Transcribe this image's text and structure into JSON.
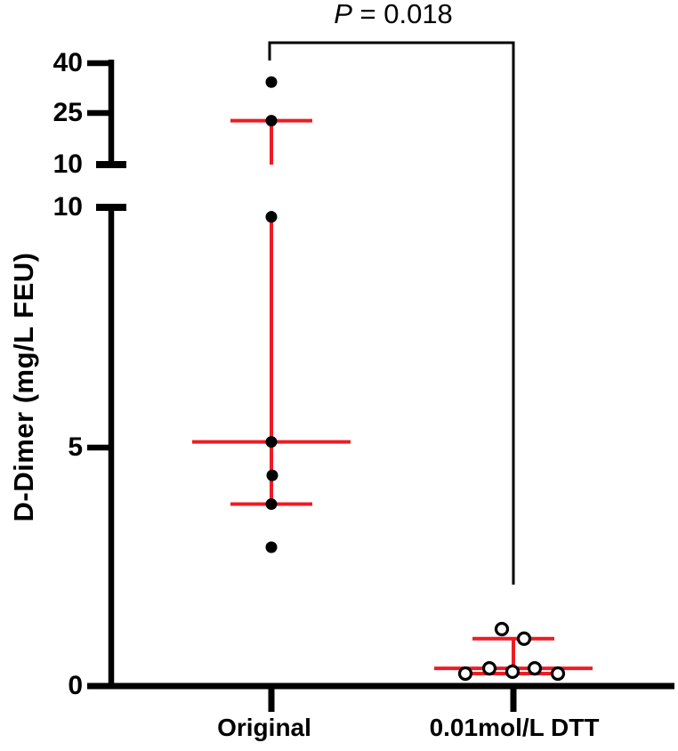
{
  "chart_data": {
    "type": "scatter",
    "title": "",
    "xlabel": "",
    "ylabel": "D-Dimer (mg/L FEU)",
    "categories": [
      "Original",
      "0.01mol/L DTT"
    ],
    "y_axis": {
      "broken": true,
      "upper_ticks": [
        "40",
        "25",
        "10"
      ],
      "lower_ticks": [
        "10",
        "5",
        "0"
      ],
      "upper_range": [
        10,
        40
      ],
      "lower_range": [
        0,
        10
      ]
    },
    "series": [
      {
        "name": "Original",
        "marker": "filled-circle",
        "marker_color": "#000000",
        "median": 5.1,
        "q1": 3.8,
        "q3": 23.0,
        "points": [
          {
            "value": 34.4,
            "dx": 0
          },
          {
            "value": 23.0,
            "dx": 0
          },
          {
            "value": 9.8,
            "dx": 0
          },
          {
            "value": 5.1,
            "dx": 0
          },
          {
            "value": 4.4,
            "dx": 1
          },
          {
            "value": 3.8,
            "dx": 0
          },
          {
            "value": 2.9,
            "dx": 0
          }
        ]
      },
      {
        "name": "0.01mol/L DTT",
        "marker": "open-circle",
        "marker_color": "#000000",
        "median": 0.37,
        "q1": 0.26,
        "q3": 0.99,
        "points": [
          {
            "value": 1.19,
            "dx": -13
          },
          {
            "value": 0.99,
            "dx": 12
          },
          {
            "value": 0.37,
            "dx": -27
          },
          {
            "value": 0.37,
            "dx": 24
          },
          {
            "value": 0.3,
            "dx": -1
          },
          {
            "value": 0.26,
            "dx": -54
          },
          {
            "value": 0.26,
            "dx": 50
          }
        ]
      }
    ],
    "error_bar_style": "median-with-interquartile-range",
    "error_bar_color": "#ED1C24",
    "axis_color": "#000000",
    "significance": {
      "symbol": "P",
      "rest": " = 0.018",
      "compares": [
        "Original",
        "0.01mol/L DTT"
      ]
    }
  }
}
